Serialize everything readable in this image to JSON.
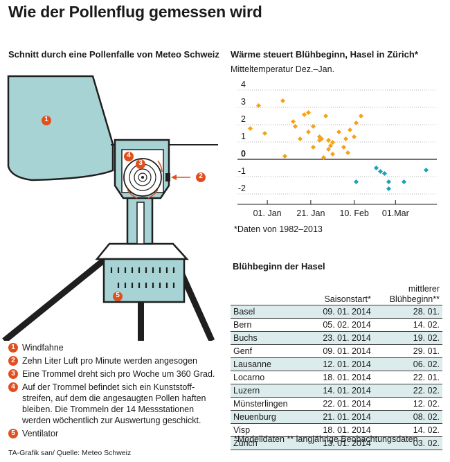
{
  "title": "Wie der Pollenflug gemessen wird",
  "trap": {
    "title": "Schnitt durch eine Pollenfalle von Meteo Schweiz",
    "marker_color": "#e0501e",
    "body_color": "#a8d3d4",
    "legend": [
      {
        "num": "1",
        "text": "Windfahne"
      },
      {
        "num": "2",
        "text": "Zehn Liter Luft pro Minute werden angesogen"
      },
      {
        "num": "3",
        "text": "Eine Trommel dreht sich pro Woche um 360 Grad."
      },
      {
        "num": "4",
        "text": "Auf der Trommel befindet sich ein Kunststoff-streifen, auf dem die angesaugten Pollen haften bleiben. Die Trommeln der 14 Messstationen werden wöchentlich zur Auswertung geschickt."
      },
      {
        "num": "5",
        "text": "Ventilator"
      }
    ]
  },
  "source": "TA-Grafik san/ Quelle: Meteo Schweiz",
  "chart_data": {
    "type": "scatter",
    "title": "Wärme steuert Blühbeginn, Hasel in Zürich*",
    "ylabel": "Mitteltemperatur Dez.–Jan.",
    "footnote": "*Daten von 1982–2013",
    "x_unit": "day of year (days after 31 Dec)",
    "x_ticks": [
      {
        "label": "01. Jan",
        "value": 1
      },
      {
        "label": "21. Jan",
        "value": 21
      },
      {
        "label": "10. Feb",
        "value": 41
      },
      {
        "label": "01.Mar",
        "value": 60
      }
    ],
    "y_ticks": [
      "4",
      "3",
      "2",
      "1",
      "0",
      "-1",
      "-2"
    ],
    "ylim": [
      -2.4,
      4.4
    ],
    "xlim": [
      -7,
      79
    ],
    "zero_line": true,
    "grid": "horizontal dotted",
    "series": [
      {
        "color": "#f5a21a",
        "points": [
          [
            -7,
            1.8
          ],
          [
            -3,
            3.1
          ],
          [
            0,
            1.5
          ],
          [
            8,
            3.4
          ],
          [
            9,
            0.2
          ],
          [
            13,
            2.2
          ],
          [
            14,
            1.9
          ],
          [
            16,
            1.2
          ],
          [
            18,
            2.6
          ],
          [
            20,
            2.7
          ],
          [
            20,
            1.6
          ],
          [
            22,
            0.7
          ],
          [
            22,
            1.9
          ],
          [
            25,
            1.3
          ],
          [
            25,
            1.1
          ],
          [
            26,
            1.2
          ],
          [
            27,
            0.1
          ],
          [
            28,
            2.5
          ],
          [
            29,
            1.1
          ],
          [
            29,
            0.6
          ],
          [
            30,
            0.8
          ],
          [
            31,
            1.0
          ],
          [
            31,
            0.3
          ],
          [
            34,
            1.6
          ],
          [
            37,
            1.2
          ],
          [
            36,
            0.7
          ],
          [
            38,
            0.4
          ],
          [
            39,
            1.7
          ],
          [
            42,
            2.1
          ],
          [
            44,
            2.5
          ],
          [
            41,
            1.3
          ]
        ]
      },
      {
        "color": "#1aa3b7",
        "points": [
          [
            42,
            -1.3
          ],
          [
            51,
            -0.5
          ],
          [
            53,
            -0.7
          ],
          [
            55,
            -0.8
          ],
          [
            57,
            -1.3
          ],
          [
            57,
            -1.7
          ],
          [
            64,
            -1.3
          ],
          [
            74,
            -0.6
          ]
        ]
      }
    ]
  },
  "table": {
    "title": "Blühbeginn der Hasel",
    "col_start": "Saisonstart*",
    "col_avg_line1": "mittlerer",
    "col_avg_line2": "Blühbeginn**",
    "rows": [
      {
        "city": "Basel",
        "start": "09. 01. 2014",
        "avg": "28. 01."
      },
      {
        "city": "Bern",
        "start": "05. 02. 2014",
        "avg": "14. 02."
      },
      {
        "city": "Buchs",
        "start": "23. 01. 2014",
        "avg": "19. 02."
      },
      {
        "city": "Genf",
        "start": "09. 01. 2014",
        "avg": "29. 01."
      },
      {
        "city": "Lausanne",
        "start": "12. 01. 2014",
        "avg": "06. 02."
      },
      {
        "city": "Locarno",
        "start": "18. 01. 2014",
        "avg": "22. 01."
      },
      {
        "city": "Luzern",
        "start": "14. 01. 2014",
        "avg": "22. 02."
      },
      {
        "city": "Münsterlingen",
        "start": "22. 01. 2014",
        "avg": "12. 02."
      },
      {
        "city": "Neuenburg",
        "start": "21. 01. 2014",
        "avg": "08. 02."
      },
      {
        "city": "Visp",
        "start": "18. 01. 2014",
        "avg": "14. 02."
      },
      {
        "city": "Zürich",
        "start": "13. 01. 2014",
        "avg": "03. 02."
      }
    ],
    "footnote": "*Modelldaten  ** langjährige Beobachtungsdaten"
  }
}
